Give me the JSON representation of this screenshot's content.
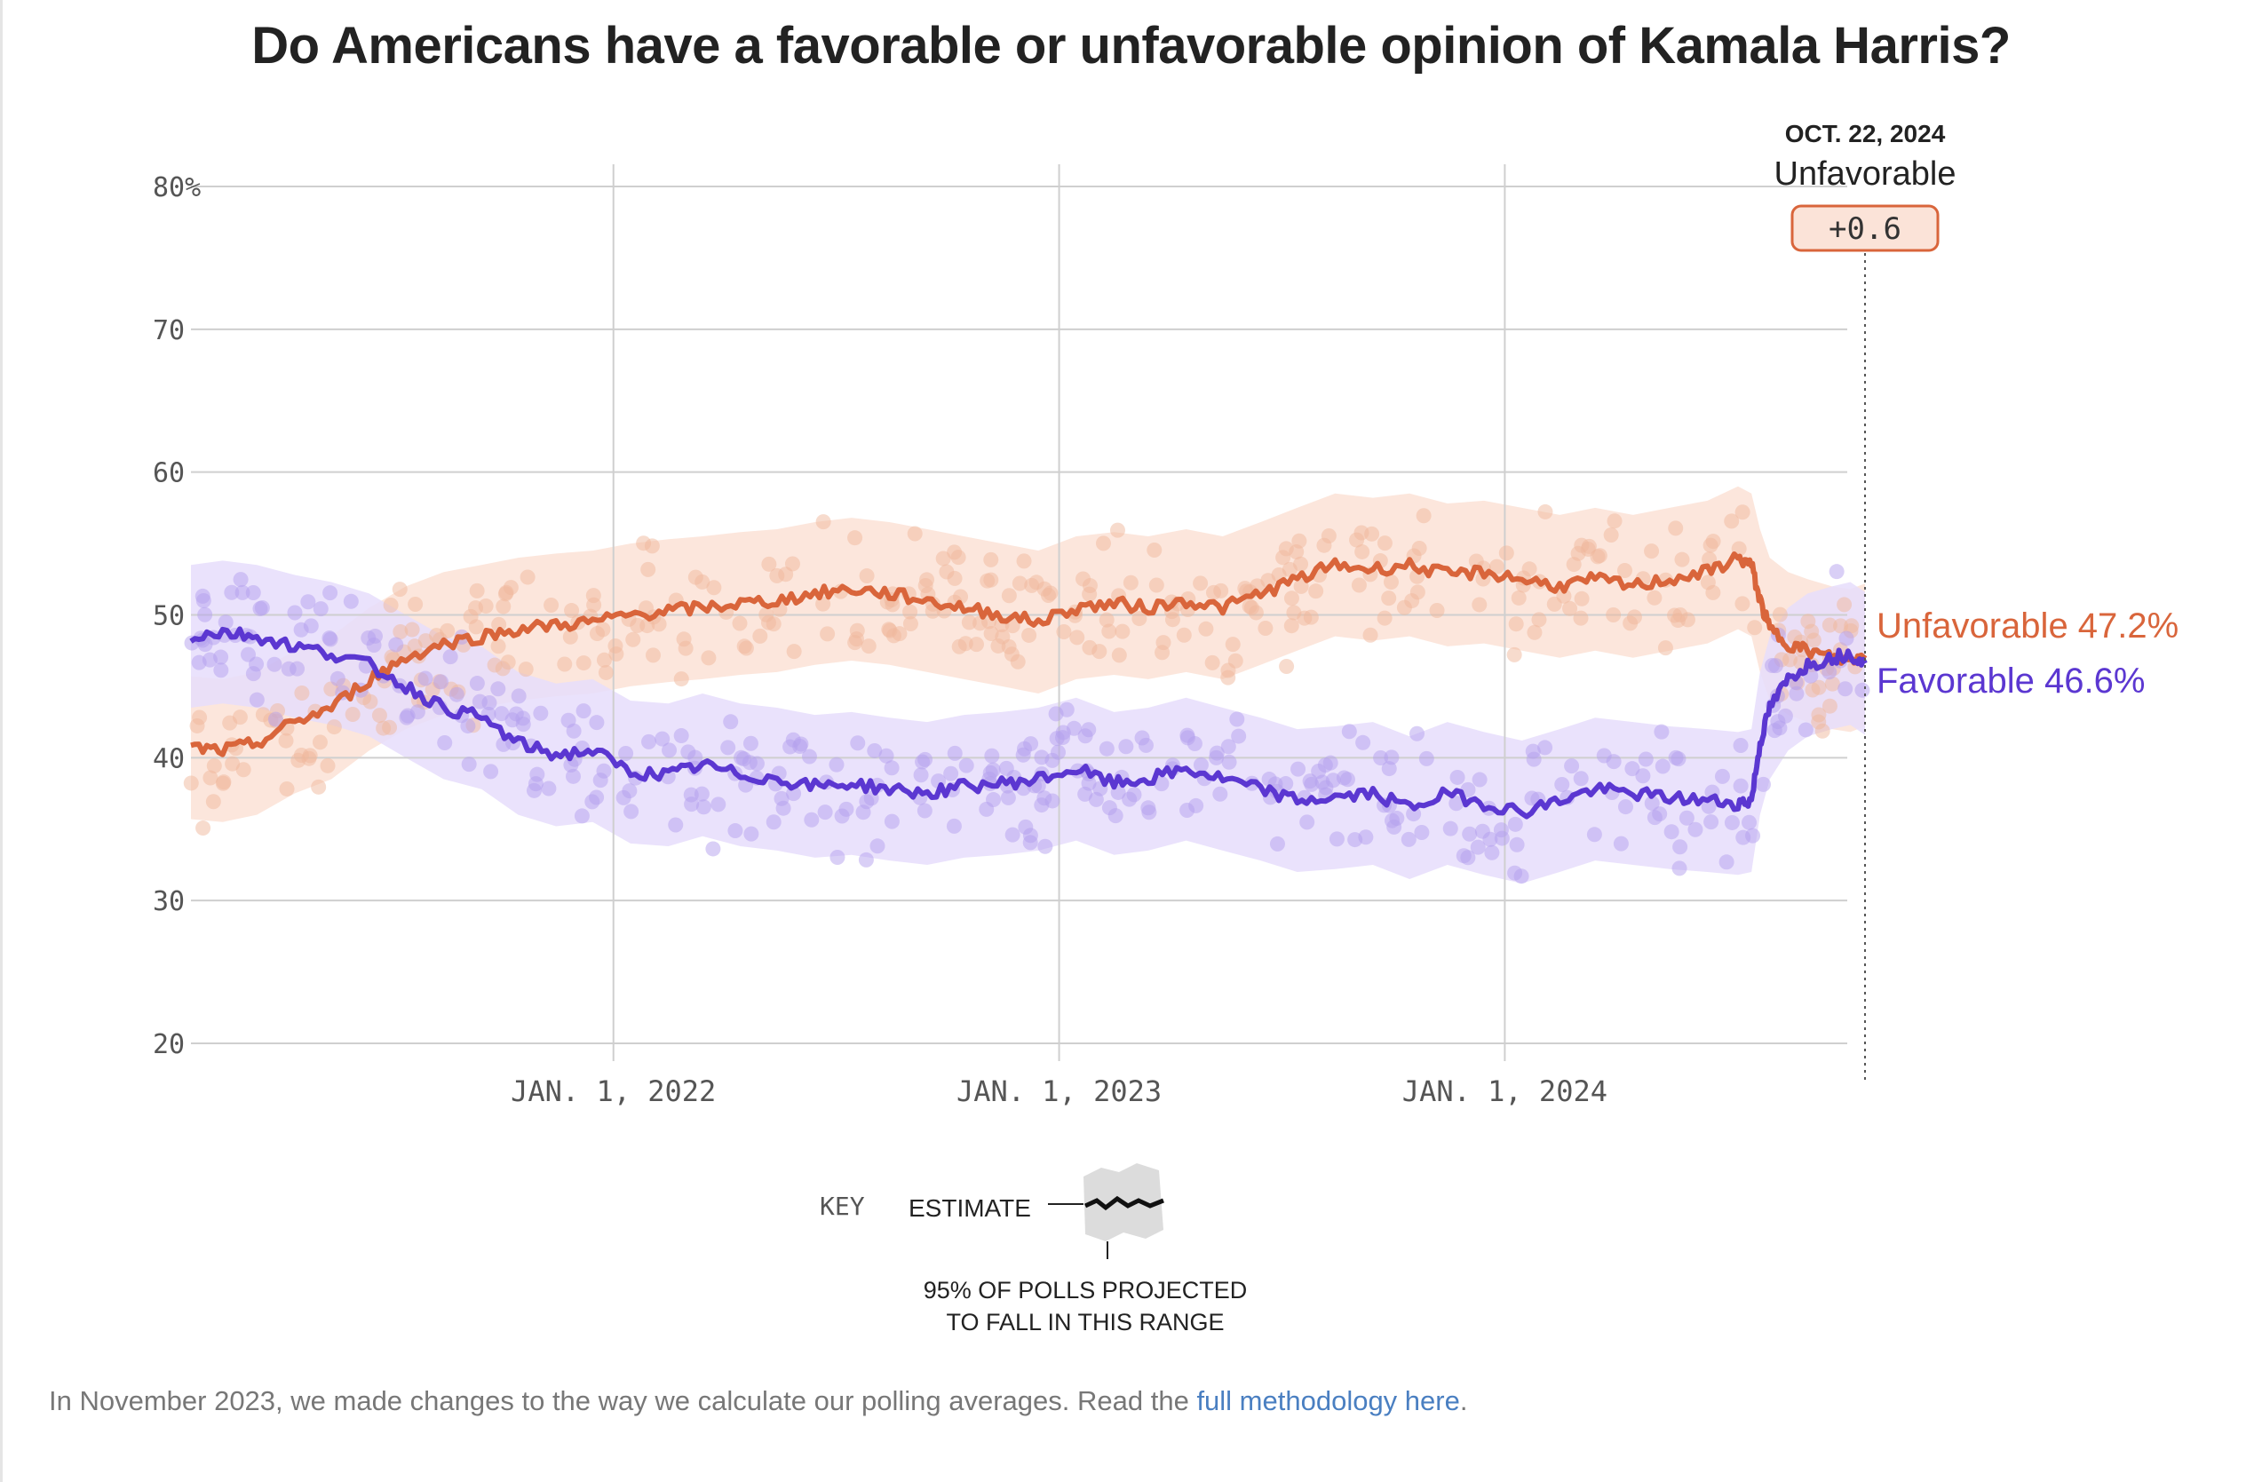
{
  "title": "Do Americans have a favorable or unfavorable opinion of Kamala Harris?",
  "chart_data": {
    "type": "line",
    "ylim": [
      20,
      80
    ],
    "y_ticks": [
      {
        "value": 80,
        "label": "80%"
      },
      {
        "value": 70,
        "label": "70"
      },
      {
        "value": 60,
        "label": "60"
      },
      {
        "value": 50,
        "label": "50"
      },
      {
        "value": 40,
        "label": "40"
      },
      {
        "value": 30,
        "label": "30"
      },
      {
        "value": 20,
        "label": "20"
      }
    ],
    "x_range": [
      "2021-01-20",
      "2024-10-22"
    ],
    "x_ticks": [
      {
        "date": "2022-01-01",
        "label": "JAN. 1, 2022"
      },
      {
        "date": "2023-01-01",
        "label": "JAN. 1, 2023"
      },
      {
        "date": "2024-01-01",
        "label": "JAN. 1, 2024"
      }
    ],
    "series": [
      {
        "name": "Unfavorable",
        "color": "#d9653b",
        "final_value": 47.2,
        "end_label": "Unfavorable 47.2%",
        "points": [
          [
            "2021-01-20",
            40.7
          ],
          [
            "2021-02-15",
            40.5
          ],
          [
            "2021-03-15",
            41.0
          ],
          [
            "2021-04-15",
            42.5
          ],
          [
            "2021-05-15",
            43.5
          ],
          [
            "2021-06-15",
            45.5
          ],
          [
            "2021-07-15",
            47.0
          ],
          [
            "2021-08-15",
            48.0
          ],
          [
            "2021-09-15",
            48.5
          ],
          [
            "2021-10-15",
            49.0
          ],
          [
            "2021-11-15",
            49.3
          ],
          [
            "2021-12-15",
            49.5
          ],
          [
            "2022-01-15",
            50.0
          ],
          [
            "2022-02-15",
            50.3
          ],
          [
            "2022-03-15",
            50.5
          ],
          [
            "2022-04-15",
            50.8
          ],
          [
            "2022-05-15",
            51.0
          ],
          [
            "2022-06-15",
            51.5
          ],
          [
            "2022-07-15",
            51.8
          ],
          [
            "2022-08-15",
            51.5
          ],
          [
            "2022-09-15",
            51.0
          ],
          [
            "2022-10-15",
            50.5
          ],
          [
            "2022-11-15",
            50.0
          ],
          [
            "2022-12-15",
            49.5
          ],
          [
            "2023-01-15",
            50.5
          ],
          [
            "2023-02-15",
            50.8
          ],
          [
            "2023-03-15",
            50.5
          ],
          [
            "2023-04-15",
            51.0
          ],
          [
            "2023-05-15",
            50.5
          ],
          [
            "2023-06-15",
            51.5
          ],
          [
            "2023-07-15",
            52.5
          ],
          [
            "2023-08-15",
            53.5
          ],
          [
            "2023-09-15",
            53.2
          ],
          [
            "2023-10-15",
            53.5
          ],
          [
            "2023-11-15",
            52.8
          ],
          [
            "2023-12-15",
            53.0
          ],
          [
            "2024-01-15",
            52.5
          ],
          [
            "2024-02-15",
            52.0
          ],
          [
            "2024-03-15",
            52.5
          ],
          [
            "2024-04-15",
            52.0
          ],
          [
            "2024-05-15",
            52.5
          ],
          [
            "2024-06-15",
            53.0
          ],
          [
            "2024-07-10",
            54.0
          ],
          [
            "2024-07-21",
            53.5
          ],
          [
            "2024-07-28",
            51.0
          ],
          [
            "2024-08-05",
            49.0
          ],
          [
            "2024-08-20",
            48.0
          ],
          [
            "2024-09-05",
            47.5
          ],
          [
            "2024-09-25",
            47.0
          ],
          [
            "2024-10-10",
            46.8
          ],
          [
            "2024-10-22",
            47.2
          ]
        ]
      },
      {
        "name": "Favorable",
        "color": "#5b37d1",
        "final_value": 46.6,
        "end_label": "Favorable 46.6%",
        "points": [
          [
            "2021-01-20",
            48.5
          ],
          [
            "2021-02-15",
            48.8
          ],
          [
            "2021-03-15",
            48.5
          ],
          [
            "2021-04-15",
            47.8
          ],
          [
            "2021-05-15",
            47.3
          ],
          [
            "2021-06-15",
            46.5
          ],
          [
            "2021-07-15",
            45.0
          ],
          [
            "2021-08-15",
            43.5
          ],
          [
            "2021-09-15",
            42.8
          ],
          [
            "2021-10-15",
            41.0
          ],
          [
            "2021-11-15",
            40.2
          ],
          [
            "2021-12-15",
            40.5
          ],
          [
            "2022-01-15",
            39.0
          ],
          [
            "2022-02-15",
            38.8
          ],
          [
            "2022-03-15",
            39.5
          ],
          [
            "2022-04-15",
            38.8
          ],
          [
            "2022-05-15",
            38.5
          ],
          [
            "2022-06-15",
            38.0
          ],
          [
            "2022-07-15",
            38.2
          ],
          [
            "2022-08-15",
            37.8
          ],
          [
            "2022-09-15",
            37.5
          ],
          [
            "2022-10-15",
            38.0
          ],
          [
            "2022-11-15",
            38.2
          ],
          [
            "2022-12-15",
            38.5
          ],
          [
            "2023-01-15",
            39.2
          ],
          [
            "2023-02-15",
            38.2
          ],
          [
            "2023-03-15",
            38.5
          ],
          [
            "2023-04-15",
            39.2
          ],
          [
            "2023-05-15",
            38.5
          ],
          [
            "2023-06-15",
            37.8
          ],
          [
            "2023-07-15",
            37.0
          ],
          [
            "2023-08-15",
            37.2
          ],
          [
            "2023-09-15",
            37.5
          ],
          [
            "2023-10-15",
            36.5
          ],
          [
            "2023-11-15",
            37.5
          ],
          [
            "2023-12-15",
            36.8
          ],
          [
            "2024-01-15",
            36.2
          ],
          [
            "2024-02-15",
            37.0
          ],
          [
            "2024-03-15",
            37.8
          ],
          [
            "2024-04-15",
            37.5
          ],
          [
            "2024-05-15",
            37.2
          ],
          [
            "2024-06-15",
            37.0
          ],
          [
            "2024-07-10",
            36.8
          ],
          [
            "2024-07-21",
            37.0
          ],
          [
            "2024-07-28",
            41.0
          ],
          [
            "2024-08-05",
            43.5
          ],
          [
            "2024-08-20",
            45.5
          ],
          [
            "2024-09-05",
            46.5
          ],
          [
            "2024-09-25",
            47.0
          ],
          [
            "2024-10-10",
            47.3
          ],
          [
            "2024-10-22",
            46.6
          ]
        ]
      }
    ],
    "band_halfwidth": 5,
    "grid": true,
    "marker": {
      "date": "2024-10-22",
      "date_label": "OCT. 22, 2024",
      "leader": "Unfavorable",
      "margin": "+0.6"
    }
  },
  "key": {
    "label": "KEY",
    "estimate": "ESTIMATE",
    "range_line1": "95% OF POLLS PROJECTED",
    "range_line2": "TO FALL IN THIS RANGE"
  },
  "footnote": {
    "text": "In November 2023, we made changes to the way we calculate our polling averages. Read the ",
    "link": "full methodology here",
    "end": "."
  }
}
